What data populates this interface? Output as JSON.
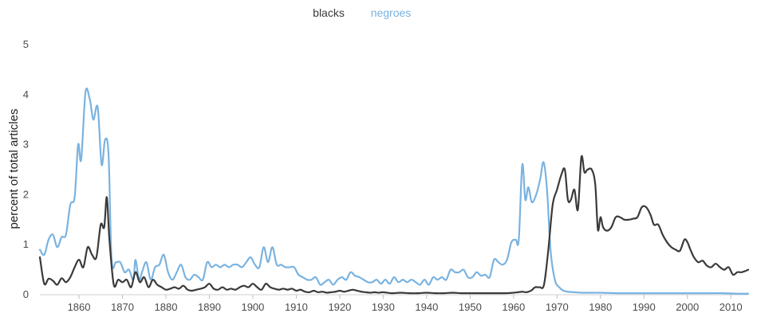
{
  "chart_data": {
    "type": "line",
    "title": "",
    "xlabel": "",
    "ylabel": "percent of total articles",
    "xlim": [
      1851,
      2014
    ],
    "ylim": [
      0,
      5
    ],
    "x_ticks": [
      1860,
      1870,
      1880,
      1890,
      1900,
      1910,
      1920,
      1930,
      1940,
      1950,
      1960,
      1970,
      1980,
      1990,
      2000,
      2010
    ],
    "y_ticks": [
      0,
      1,
      2,
      3,
      4,
      5
    ],
    "grid": false,
    "legend_position": "top-center",
    "series": [
      {
        "name": "blacks",
        "color": "#3a3a3a",
        "points": [
          [
            1851,
            0.75
          ],
          [
            1852,
            0.22
          ],
          [
            1853,
            0.32
          ],
          [
            1854,
            0.28
          ],
          [
            1855,
            0.2
          ],
          [
            1856,
            0.33
          ],
          [
            1857,
            0.25
          ],
          [
            1858,
            0.35
          ],
          [
            1859,
            0.55
          ],
          [
            1860,
            0.7
          ],
          [
            1861,
            0.55
          ],
          [
            1862,
            0.95
          ],
          [
            1863,
            0.8
          ],
          [
            1864,
            0.75
          ],
          [
            1865,
            1.4
          ],
          [
            1865.8,
            1.35
          ],
          [
            1866.4,
            1.95
          ],
          [
            1867,
            1.1
          ],
          [
            1868,
            0.2
          ],
          [
            1869,
            0.3
          ],
          [
            1870,
            0.25
          ],
          [
            1871,
            0.3
          ],
          [
            1872,
            0.15
          ],
          [
            1873,
            0.45
          ],
          [
            1874,
            0.25
          ],
          [
            1875,
            0.35
          ],
          [
            1876,
            0.15
          ],
          [
            1877,
            0.3
          ],
          [
            1878,
            0.2
          ],
          [
            1879,
            0.15
          ],
          [
            1880,
            0.1
          ],
          [
            1881,
            0.12
          ],
          [
            1882,
            0.15
          ],
          [
            1883,
            0.12
          ],
          [
            1884,
            0.18
          ],
          [
            1885,
            0.1
          ],
          [
            1886,
            0.08
          ],
          [
            1887,
            0.1
          ],
          [
            1888,
            0.12
          ],
          [
            1889,
            0.15
          ],
          [
            1890,
            0.22
          ],
          [
            1891,
            0.12
          ],
          [
            1892,
            0.1
          ],
          [
            1893,
            0.15
          ],
          [
            1894,
            0.1
          ],
          [
            1895,
            0.12
          ],
          [
            1896,
            0.1
          ],
          [
            1897,
            0.15
          ],
          [
            1898,
            0.18
          ],
          [
            1899,
            0.15
          ],
          [
            1900,
            0.22
          ],
          [
            1901,
            0.15
          ],
          [
            1902,
            0.1
          ],
          [
            1903,
            0.22
          ],
          [
            1904,
            0.15
          ],
          [
            1905,
            0.12
          ],
          [
            1906,
            0.1
          ],
          [
            1907,
            0.12
          ],
          [
            1908,
            0.1
          ],
          [
            1909,
            0.12
          ],
          [
            1910,
            0.08
          ],
          [
            1911,
            0.1
          ],
          [
            1912,
            0.06
          ],
          [
            1913,
            0.05
          ],
          [
            1914,
            0.08
          ],
          [
            1915,
            0.05
          ],
          [
            1916,
            0.06
          ],
          [
            1917,
            0.04
          ],
          [
            1918,
            0.05
          ],
          [
            1919,
            0.06
          ],
          [
            1920,
            0.08
          ],
          [
            1921,
            0.06
          ],
          [
            1922,
            0.08
          ],
          [
            1923,
            0.1
          ],
          [
            1924,
            0.08
          ],
          [
            1925,
            0.06
          ],
          [
            1926,
            0.05
          ],
          [
            1927,
            0.04
          ],
          [
            1928,
            0.05
          ],
          [
            1929,
            0.04
          ],
          [
            1930,
            0.05
          ],
          [
            1932,
            0.03
          ],
          [
            1934,
            0.04
          ],
          [
            1936,
            0.03
          ],
          [
            1938,
            0.03
          ],
          [
            1940,
            0.04
          ],
          [
            1942,
            0.03
          ],
          [
            1944,
            0.03
          ],
          [
            1946,
            0.04
          ],
          [
            1948,
            0.03
          ],
          [
            1950,
            0.03
          ],
          [
            1952,
            0.03
          ],
          [
            1954,
            0.03
          ],
          [
            1956,
            0.03
          ],
          [
            1958,
            0.03
          ],
          [
            1960,
            0.04
          ],
          [
            1961,
            0.05
          ],
          [
            1962,
            0.06
          ],
          [
            1963,
            0.05
          ],
          [
            1964,
            0.08
          ],
          [
            1965,
            0.15
          ],
          [
            1966,
            0.15
          ],
          [
            1967,
            0.2
          ],
          [
            1968,
            0.9
          ],
          [
            1969,
            1.8
          ],
          [
            1970,
            2.1
          ],
          [
            1971,
            2.4
          ],
          [
            1971.8,
            2.5
          ],
          [
            1972.5,
            1.9
          ],
          [
            1973.2,
            1.9
          ],
          [
            1974,
            2.1
          ],
          [
            1974.8,
            1.7
          ],
          [
            1975.6,
            2.75
          ],
          [
            1976.3,
            2.45
          ],
          [
            1977,
            2.5
          ],
          [
            1978,
            2.5
          ],
          [
            1978.8,
            2.2
          ],
          [
            1979.4,
            1.3
          ],
          [
            1980,
            1.55
          ],
          [
            1980.6,
            1.35
          ],
          [
            1981.5,
            1.28
          ],
          [
            1982.5,
            1.35
          ],
          [
            1983.5,
            1.55
          ],
          [
            1984.5,
            1.55
          ],
          [
            1985.5,
            1.5
          ],
          [
            1986.5,
            1.5
          ],
          [
            1987.5,
            1.52
          ],
          [
            1988.5,
            1.55
          ],
          [
            1989.5,
            1.75
          ],
          [
            1990.5,
            1.75
          ],
          [
            1991.5,
            1.6
          ],
          [
            1992.3,
            1.4
          ],
          [
            1993.3,
            1.4
          ],
          [
            1994.3,
            1.2
          ],
          [
            1995.3,
            1.05
          ],
          [
            1996.3,
            0.95
          ],
          [
            1997.3,
            0.9
          ],
          [
            1998.3,
            0.88
          ],
          [
            1999.3,
            1.1
          ],
          [
            2000,
            1.05
          ],
          [
            2000.7,
            0.9
          ],
          [
            2001.5,
            0.75
          ],
          [
            2002.5,
            0.65
          ],
          [
            2003.5,
            0.68
          ],
          [
            2004.5,
            0.58
          ],
          [
            2005.5,
            0.55
          ],
          [
            2006.5,
            0.62
          ],
          [
            2007.5,
            0.55
          ],
          [
            2008.5,
            0.5
          ],
          [
            2009.5,
            0.55
          ],
          [
            2010.5,
            0.4
          ],
          [
            2011.5,
            0.45
          ],
          [
            2012.5,
            0.45
          ],
          [
            2013.5,
            0.48
          ],
          [
            2014,
            0.5
          ]
        ]
      },
      {
        "name": "negroes",
        "color": "#7ab3e0",
        "points": [
          [
            1851,
            0.9
          ],
          [
            1852,
            0.8
          ],
          [
            1853,
            1.1
          ],
          [
            1854,
            1.2
          ],
          [
            1855,
            0.95
          ],
          [
            1856,
            1.15
          ],
          [
            1857,
            1.2
          ],
          [
            1858,
            1.8
          ],
          [
            1859,
            1.95
          ],
          [
            1859.8,
            3.0
          ],
          [
            1860.5,
            2.7
          ],
          [
            1861.5,
            4.05
          ],
          [
            1862.5,
            3.9
          ],
          [
            1863.3,
            3.5
          ],
          [
            1864.3,
            3.75
          ],
          [
            1865.2,
            2.6
          ],
          [
            1866,
            3.1
          ],
          [
            1866.8,
            2.8
          ],
          [
            1867.5,
            0.7
          ],
          [
            1868.5,
            0.65
          ],
          [
            1869.5,
            0.65
          ],
          [
            1870.5,
            0.45
          ],
          [
            1871.5,
            0.5
          ],
          [
            1872.5,
            0.3
          ],
          [
            1873,
            0.7
          ],
          [
            1873.8,
            0.3
          ],
          [
            1874.5,
            0.45
          ],
          [
            1875.5,
            0.65
          ],
          [
            1876.5,
            0.3
          ],
          [
            1877.5,
            0.55
          ],
          [
            1878.5,
            0.6
          ],
          [
            1879.5,
            0.8
          ],
          [
            1880.5,
            0.45
          ],
          [
            1881.5,
            0.3
          ],
          [
            1882.5,
            0.45
          ],
          [
            1883.5,
            0.6
          ],
          [
            1884.5,
            0.35
          ],
          [
            1885.5,
            0.3
          ],
          [
            1886.5,
            0.4
          ],
          [
            1887.5,
            0.35
          ],
          [
            1888.5,
            0.3
          ],
          [
            1889.5,
            0.65
          ],
          [
            1890.5,
            0.55
          ],
          [
            1891.5,
            0.6
          ],
          [
            1892.5,
            0.55
          ],
          [
            1893.5,
            0.6
          ],
          [
            1894.5,
            0.55
          ],
          [
            1895.5,
            0.6
          ],
          [
            1896.5,
            0.6
          ],
          [
            1897.5,
            0.55
          ],
          [
            1898.5,
            0.65
          ],
          [
            1899.5,
            0.75
          ],
          [
            1900.5,
            0.6
          ],
          [
            1901.5,
            0.55
          ],
          [
            1902.5,
            0.95
          ],
          [
            1903.5,
            0.65
          ],
          [
            1904.5,
            0.95
          ],
          [
            1905.5,
            0.6
          ],
          [
            1906.5,
            0.6
          ],
          [
            1907.5,
            0.55
          ],
          [
            1908.5,
            0.55
          ],
          [
            1909.5,
            0.55
          ],
          [
            1910.5,
            0.4
          ],
          [
            1911.5,
            0.35
          ],
          [
            1912.5,
            0.3
          ],
          [
            1913.5,
            0.3
          ],
          [
            1914.5,
            0.35
          ],
          [
            1915.5,
            0.2
          ],
          [
            1916.5,
            0.25
          ],
          [
            1917.5,
            0.3
          ],
          [
            1918.5,
            0.2
          ],
          [
            1919.5,
            0.3
          ],
          [
            1920.5,
            0.35
          ],
          [
            1921.5,
            0.3
          ],
          [
            1922.5,
            0.45
          ],
          [
            1923.5,
            0.38
          ],
          [
            1924.5,
            0.35
          ],
          [
            1925.5,
            0.3
          ],
          [
            1926.5,
            0.25
          ],
          [
            1927.5,
            0.25
          ],
          [
            1928.5,
            0.3
          ],
          [
            1929.5,
            0.22
          ],
          [
            1930.5,
            0.3
          ],
          [
            1931.5,
            0.22
          ],
          [
            1932.5,
            0.35
          ],
          [
            1933.5,
            0.25
          ],
          [
            1934.5,
            0.3
          ],
          [
            1935.5,
            0.25
          ],
          [
            1936.5,
            0.3
          ],
          [
            1937.5,
            0.25
          ],
          [
            1938.5,
            0.2
          ],
          [
            1939.5,
            0.3
          ],
          [
            1940.5,
            0.2
          ],
          [
            1941.5,
            0.35
          ],
          [
            1942.5,
            0.3
          ],
          [
            1943.5,
            0.35
          ],
          [
            1944.5,
            0.3
          ],
          [
            1945.5,
            0.5
          ],
          [
            1946.5,
            0.45
          ],
          [
            1947.5,
            0.45
          ],
          [
            1948.5,
            0.5
          ],
          [
            1949.5,
            0.35
          ],
          [
            1950.5,
            0.35
          ],
          [
            1951.5,
            0.45
          ],
          [
            1952.5,
            0.38
          ],
          [
            1953.5,
            0.4
          ],
          [
            1954.5,
            0.35
          ],
          [
            1955.5,
            0.7
          ],
          [
            1956.5,
            0.65
          ],
          [
            1957.5,
            0.6
          ],
          [
            1958.5,
            0.7
          ],
          [
            1959.5,
            1.05
          ],
          [
            1960.5,
            1.1
          ],
          [
            1961.2,
            1.1
          ],
          [
            1962,
            2.6
          ],
          [
            1962.7,
            1.9
          ],
          [
            1963.4,
            2.15
          ],
          [
            1964.2,
            1.85
          ],
          [
            1965.2,
            2.0
          ],
          [
            1966.1,
            2.3
          ],
          [
            1966.9,
            2.65
          ],
          [
            1967.7,
            2.1
          ],
          [
            1968.5,
            0.9
          ],
          [
            1969.5,
            0.3
          ],
          [
            1970.5,
            0.15
          ],
          [
            1971.5,
            0.08
          ],
          [
            1972.5,
            0.06
          ],
          [
            1974,
            0.05
          ],
          [
            1976,
            0.04
          ],
          [
            1978,
            0.04
          ],
          [
            1980,
            0.04
          ],
          [
            1984,
            0.03
          ],
          [
            1988,
            0.03
          ],
          [
            1992,
            0.03
          ],
          [
            1996,
            0.03
          ],
          [
            2000,
            0.03
          ],
          [
            2004,
            0.03
          ],
          [
            2008,
            0.03
          ],
          [
            2012,
            0.02
          ],
          [
            2014,
            0.02
          ]
        ]
      }
    ]
  }
}
